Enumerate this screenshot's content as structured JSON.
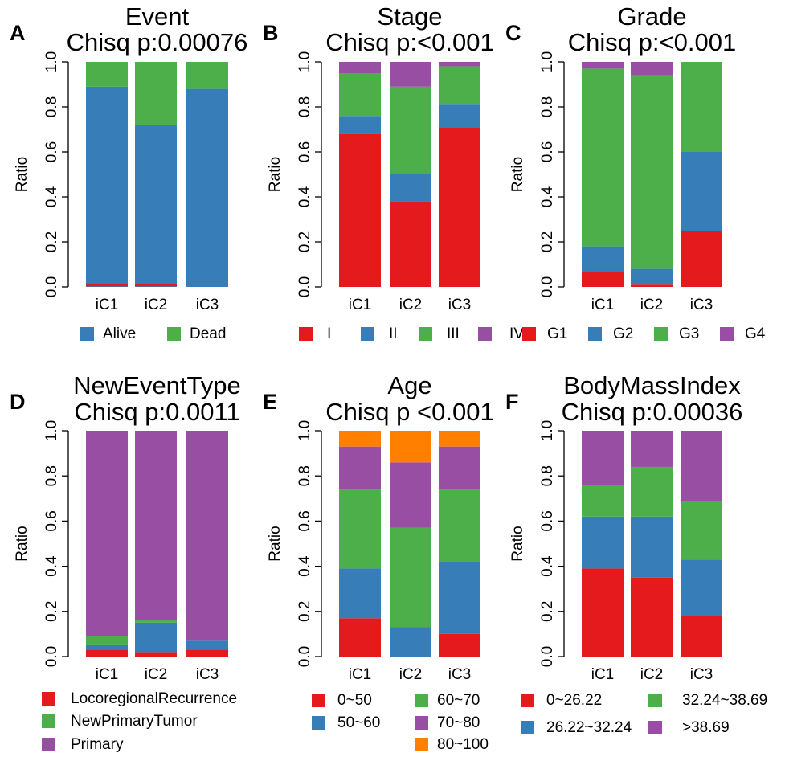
{
  "colors": {
    "red": "#E41A1C",
    "blue": "#377EB8",
    "green": "#4DAF4A",
    "purple": "#984EA3",
    "orange": "#FF7F00"
  },
  "chart_data": [
    {
      "panel": "A",
      "type": "bar",
      "stacked": true,
      "title": "Event",
      "subtitle": "Chisq p:0.00076",
      "ylabel": "Ratio",
      "ylim": [
        0,
        1
      ],
      "yticks": [
        "0.0",
        "0.2",
        "0.4",
        "0.6",
        "0.8",
        "1.0"
      ],
      "categories": [
        "iC1",
        "iC2",
        "iC3"
      ],
      "series": [
        {
          "name": "Alive",
          "color": "#377EB8",
          "values": [
            0.89,
            0.72,
            0.88
          ]
        },
        {
          "name": "Dead",
          "color": "#4DAF4A",
          "values": [
            0.11,
            0.28,
            0.12
          ]
        }
      ],
      "legend_extra": {
        "name": "",
        "color": "#E41A1C",
        "values": [
          0.01,
          0.01,
          0.0
        ]
      }
    },
    {
      "panel": "B",
      "type": "bar",
      "stacked": true,
      "title": "Stage",
      "subtitle": "Chisq p:<0.001",
      "ylabel": "Ratio",
      "ylim": [
        0,
        1
      ],
      "yticks": [
        "0.0",
        "0.2",
        "0.4",
        "0.6",
        "0.8",
        "1.0"
      ],
      "categories": [
        "iC1",
        "iC2",
        "iC3"
      ],
      "series": [
        {
          "name": "I",
          "color": "#E41A1C",
          "values": [
            0.68,
            0.38,
            0.71
          ]
        },
        {
          "name": "II",
          "color": "#377EB8",
          "values": [
            0.08,
            0.12,
            0.1
          ]
        },
        {
          "name": "III",
          "color": "#4DAF4A",
          "values": [
            0.19,
            0.39,
            0.17
          ]
        },
        {
          "name": "IV",
          "color": "#984EA3",
          "values": [
            0.05,
            0.11,
            0.02
          ]
        }
      ]
    },
    {
      "panel": "C",
      "type": "bar",
      "stacked": true,
      "title": "Grade",
      "subtitle": "Chisq p:<0.001",
      "ylabel": "Ratio",
      "ylim": [
        0,
        1
      ],
      "yticks": [
        "0.0",
        "0.2",
        "0.4",
        "0.6",
        "0.8",
        "1.0"
      ],
      "categories": [
        "iC1",
        "iC2",
        "iC3"
      ],
      "series": [
        {
          "name": "G1",
          "color": "#E41A1C",
          "values": [
            0.07,
            0.01,
            0.25
          ]
        },
        {
          "name": "G2",
          "color": "#377EB8",
          "values": [
            0.11,
            0.07,
            0.35
          ]
        },
        {
          "name": "G3",
          "color": "#4DAF4A",
          "values": [
            0.79,
            0.86,
            0.4
          ]
        },
        {
          "name": "G4",
          "color": "#984EA3",
          "values": [
            0.03,
            0.06,
            0.0
          ]
        }
      ]
    },
    {
      "panel": "D",
      "type": "bar",
      "stacked": true,
      "title": "NewEventType",
      "subtitle": "Chisq p:0.0011",
      "ylabel": "Ratio",
      "ylim": [
        0,
        1
      ],
      "yticks": [
        "0.0",
        "0.2",
        "0.4",
        "0.6",
        "0.8",
        "1.0"
      ],
      "categories": [
        "iC1",
        "iC2",
        "iC3"
      ],
      "series": [
        {
          "name": "LocoregionalRecurrence",
          "color": "#E41A1C",
          "values": [
            0.03,
            0.02,
            0.03
          ]
        },
        {
          "name": "",
          "color": "#377EB8",
          "values": [
            0.02,
            0.13,
            0.04
          ]
        },
        {
          "name": "NewPrimaryTumor",
          "color": "#4DAF4A",
          "values": [
            0.04,
            0.01,
            0.0
          ]
        },
        {
          "name": "Primary",
          "color": "#984EA3",
          "values": [
            0.91,
            0.84,
            0.93
          ]
        }
      ]
    },
    {
      "panel": "E",
      "type": "bar",
      "stacked": true,
      "title": "Age",
      "subtitle": "Chisq p <0.001",
      "ylabel": "Ratio",
      "ylim": [
        0,
        1
      ],
      "yticks": [
        "0.0",
        "0.2",
        "0.4",
        "0.6",
        "0.8",
        "1.0"
      ],
      "categories": [
        "iC1",
        "iC2",
        "iC3"
      ],
      "series": [
        {
          "name": "0~50",
          "color": "#E41A1C",
          "values": [
            0.17,
            0.0,
            0.1
          ]
        },
        {
          "name": "50~60",
          "color": "#377EB8",
          "values": [
            0.22,
            0.13,
            0.32
          ]
        },
        {
          "name": "60~70",
          "color": "#4DAF4A",
          "values": [
            0.35,
            0.44,
            0.32
          ]
        },
        {
          "name": "70~80",
          "color": "#984EA3",
          "values": [
            0.19,
            0.29,
            0.19
          ]
        },
        {
          "name": "80~100",
          "color": "#FF7F00",
          "values": [
            0.07,
            0.14,
            0.07
          ]
        }
      ]
    },
    {
      "panel": "F",
      "type": "bar",
      "stacked": true,
      "title": "BodyMassIndex",
      "subtitle": "Chisq p:0.00036",
      "ylabel": "Ratio",
      "ylim": [
        0,
        1
      ],
      "yticks": [
        "0.0",
        "0.2",
        "0.4",
        "0.6",
        "0.8",
        "1.0"
      ],
      "categories": [
        "iC1",
        "iC2",
        "iC3"
      ],
      "series": [
        {
          "name": "0~26.22",
          "color": "#E41A1C",
          "values": [
            0.39,
            0.35,
            0.18
          ]
        },
        {
          "name": "26.22~32.24",
          "color": "#377EB8",
          "values": [
            0.23,
            0.27,
            0.25
          ]
        },
        {
          "name": "32.24~38.69",
          "color": "#4DAF4A",
          "values": [
            0.14,
            0.22,
            0.26
          ]
        },
        {
          "name": ">38.69",
          "color": "#984EA3",
          "values": [
            0.24,
            0.16,
            0.31
          ]
        }
      ]
    }
  ]
}
